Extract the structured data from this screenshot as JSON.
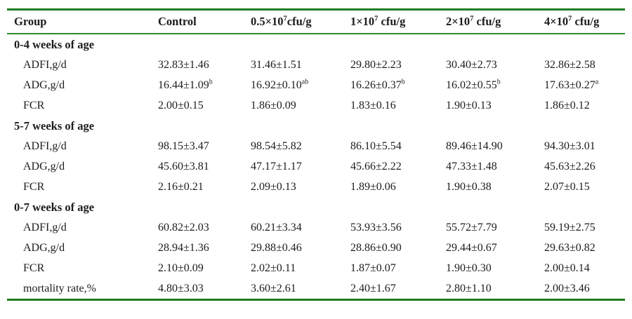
{
  "colors": {
    "rule_green": "#1e7d1e",
    "header_rule_green": "#2e8b2e",
    "text": "#1c1c1c",
    "background": "#ffffff"
  },
  "table": {
    "columns": [
      {
        "pre": "Group",
        "sup": "",
        "post": ""
      },
      {
        "pre": "Control",
        "sup": "",
        "post": ""
      },
      {
        "pre": "0.5×10",
        "sup": "7",
        "post": "cfu/g"
      },
      {
        "pre": "1×10",
        "sup": "7",
        "post": " cfu/g"
      },
      {
        "pre": "2×10",
        "sup": "7",
        "post": " cfu/g"
      },
      {
        "pre": "4×10",
        "sup": "7",
        "post": " cfu/g"
      }
    ],
    "sections": [
      {
        "title": "0-4 weeks of age",
        "rows": [
          {
            "label": "ADFI,g/d",
            "cells": [
              {
                "v": "32.83±1.46",
                "sup": ""
              },
              {
                "v": "31.46±1.51",
                "sup": ""
              },
              {
                "v": "29.80±2.23",
                "sup": ""
              },
              {
                "v": "30.40±2.73",
                "sup": ""
              },
              {
                "v": "32.86±2.58",
                "sup": ""
              }
            ]
          },
          {
            "label": "ADG,g/d",
            "cells": [
              {
                "v": "16.44±1.09",
                "sup": "b"
              },
              {
                "v": "16.92±0.10",
                "sup": "ab"
              },
              {
                "v": "16.26±0.37",
                "sup": "b"
              },
              {
                "v": "16.02±0.55",
                "sup": "b"
              },
              {
                "v": "17.63±0.27",
                "sup": "a"
              }
            ]
          },
          {
            "label": "FCR",
            "cells": [
              {
                "v": "2.00±0.15",
                "sup": ""
              },
              {
                "v": "1.86±0.09",
                "sup": ""
              },
              {
                "v": "1.83±0.16",
                "sup": ""
              },
              {
                "v": "1.90±0.13",
                "sup": ""
              },
              {
                "v": "1.86±0.12",
                "sup": ""
              }
            ]
          }
        ]
      },
      {
        "title": "5-7 weeks of age",
        "rows": [
          {
            "label": "ADFI,g/d",
            "cells": [
              {
                "v": "98.15±3.47",
                "sup": ""
              },
              {
                "v": "98.54±5.82",
                "sup": ""
              },
              {
                "v": "86.10±5.54",
                "sup": ""
              },
              {
                "v": "89.46±14.90",
                "sup": ""
              },
              {
                "v": "94.30±3.01",
                "sup": ""
              }
            ]
          },
          {
            "label": "ADG,g/d",
            "cells": [
              {
                "v": "45.60±3.81",
                "sup": ""
              },
              {
                "v": "47.17±1.17",
                "sup": ""
              },
              {
                "v": "45.66±2.22",
                "sup": ""
              },
              {
                "v": "47.33±1.48",
                "sup": ""
              },
              {
                "v": "45.63±2.26",
                "sup": ""
              }
            ]
          },
          {
            "label": "FCR",
            "cells": [
              {
                "v": "2.16±0.21",
                "sup": ""
              },
              {
                "v": "2.09±0.13",
                "sup": ""
              },
              {
                "v": "1.89±0.06",
                "sup": ""
              },
              {
                "v": "1.90±0.38",
                "sup": ""
              },
              {
                "v": "2.07±0.15",
                "sup": ""
              }
            ]
          }
        ]
      },
      {
        "title": "0-7 weeks of age",
        "rows": [
          {
            "label": "ADFI,g/d",
            "cells": [
              {
                "v": "60.82±2.03",
                "sup": ""
              },
              {
                "v": "60.21±3.34",
                "sup": ""
              },
              {
                "v": "53.93±3.56",
                "sup": ""
              },
              {
                "v": "55.72±7.79",
                "sup": ""
              },
              {
                "v": "59.19±2.75",
                "sup": ""
              }
            ]
          },
          {
            "label": "ADG,g/d",
            "cells": [
              {
                "v": "28.94±1.36",
                "sup": ""
              },
              {
                "v": "29.88±0.46",
                "sup": ""
              },
              {
                "v": "28.86±0.90",
                "sup": ""
              },
              {
                "v": "29.44±0.67",
                "sup": ""
              },
              {
                "v": "29.63±0.82",
                "sup": ""
              }
            ]
          },
          {
            "label": "FCR",
            "cells": [
              {
                "v": "2.10±0.09",
                "sup": ""
              },
              {
                "v": "2.02±0.11",
                "sup": ""
              },
              {
                "v": "1.87±0.07",
                "sup": ""
              },
              {
                "v": "1.90±0.30",
                "sup": ""
              },
              {
                "v": "2.00±0.14",
                "sup": ""
              }
            ]
          },
          {
            "label": "mortality rate,%",
            "cells": [
              {
                "v": "4.80±3.03",
                "sup": ""
              },
              {
                "v": "3.60±2.61",
                "sup": ""
              },
              {
                "v": "2.40±1.67",
                "sup": ""
              },
              {
                "v": "2.80±1.10",
                "sup": ""
              },
              {
                "v": "2.00±3.46",
                "sup": ""
              }
            ]
          }
        ]
      }
    ]
  }
}
